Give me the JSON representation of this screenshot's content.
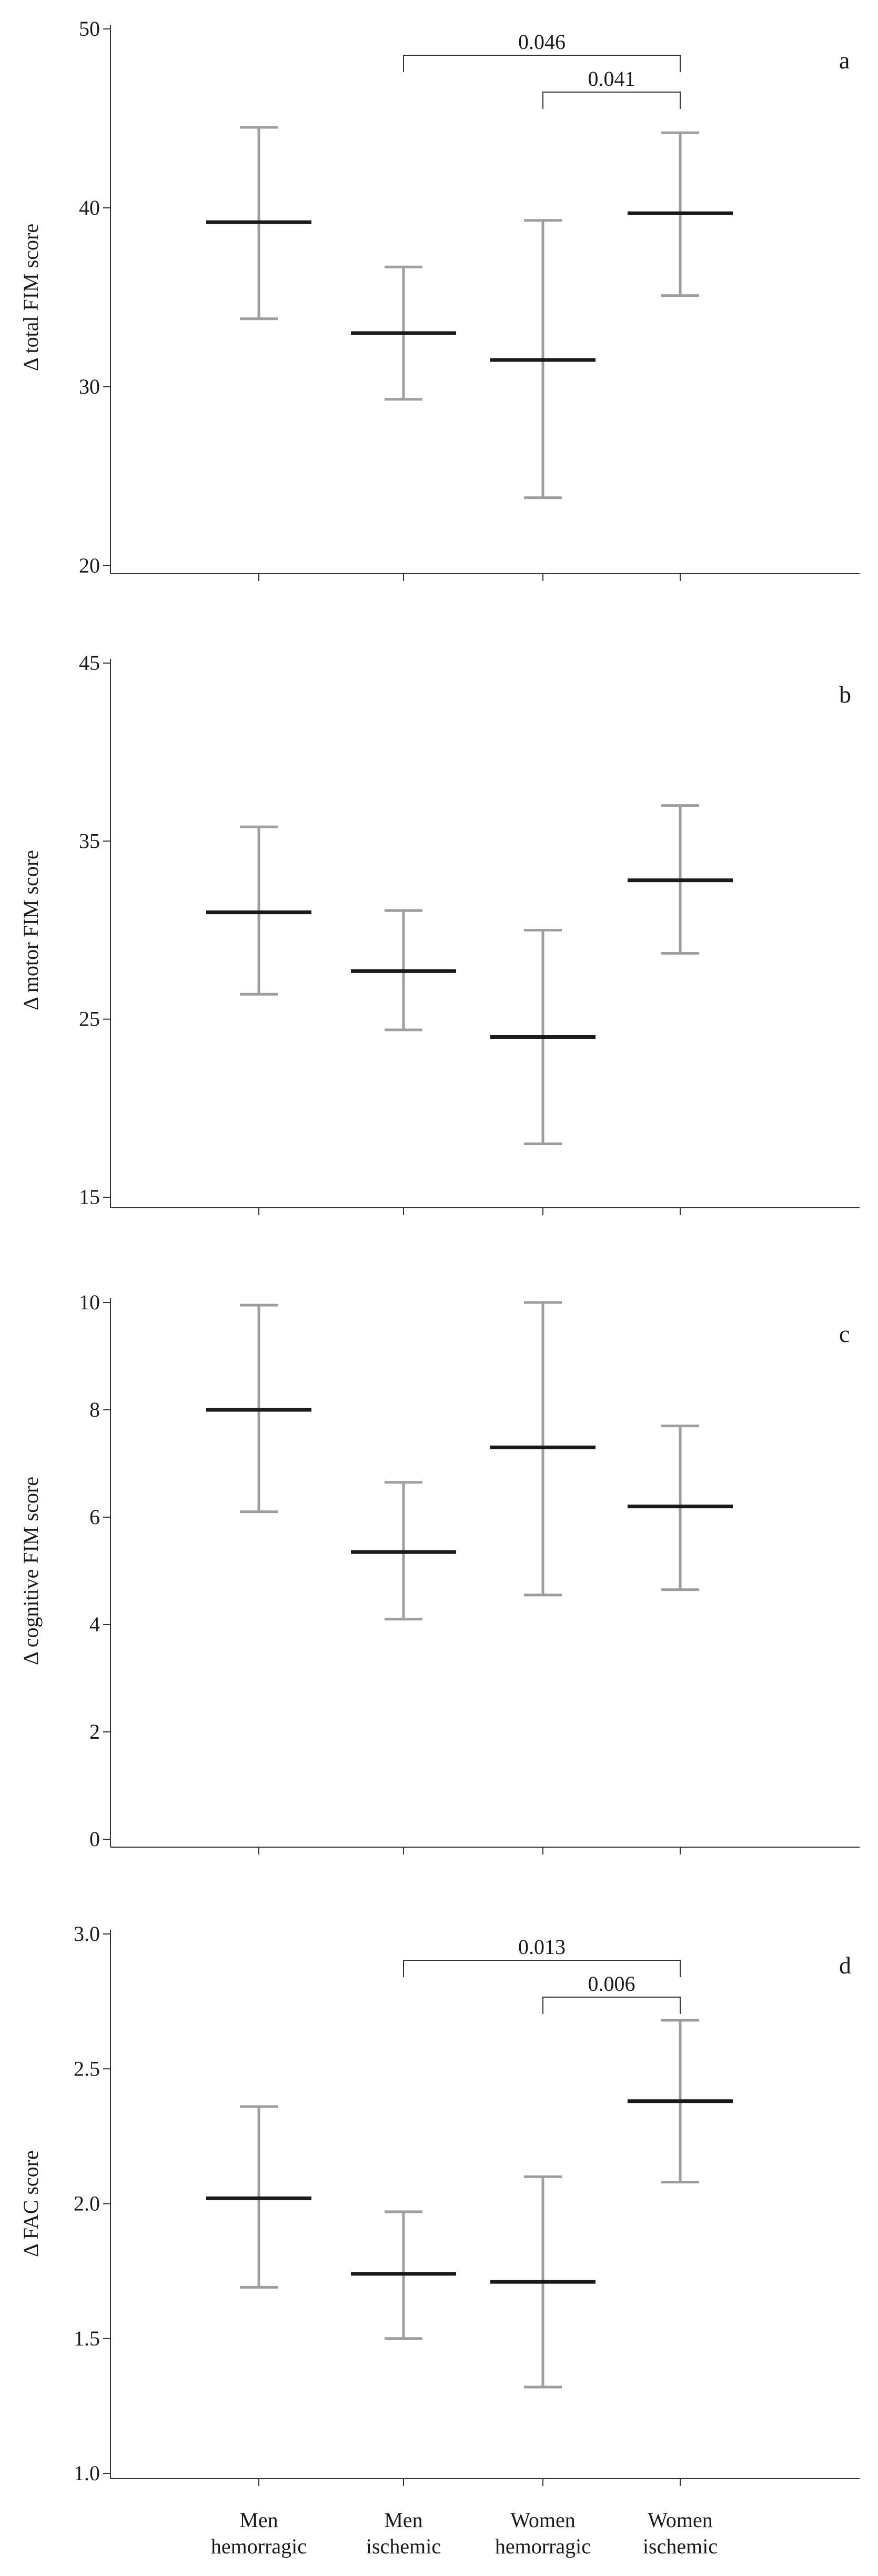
{
  "chart_data": [
    {
      "type": "errorbar",
      "panel_label": "a",
      "ylabel": "Δ total FIM score",
      "ylim": [
        20,
        50
      ],
      "yticks": [
        20,
        30,
        40,
        50
      ],
      "categories": [
        "Men hemorragic",
        "Men ischemic",
        "Women hemorragic",
        "Women ischemic"
      ],
      "means": [
        39.2,
        33.0,
        31.5,
        39.7
      ],
      "lower": [
        33.8,
        29.3,
        23.8,
        35.1
      ],
      "upper": [
        44.5,
        36.7,
        39.3,
        44.2
      ],
      "comparisons": [
        {
          "from": 1,
          "to": 3,
          "p": "0.046"
        },
        {
          "from": 2,
          "to": 3,
          "p": "0.041"
        }
      ],
      "grid": false
    },
    {
      "type": "errorbar",
      "panel_label": "b",
      "ylabel": "Δ motor FIM score",
      "ylim": [
        15,
        45
      ],
      "yticks": [
        15,
        25,
        35,
        45
      ],
      "categories": [
        "Men hemorragic",
        "Men ischemic",
        "Women hemorragic",
        "Women ischemic"
      ],
      "means": [
        31.0,
        27.7,
        24.0,
        32.8
      ],
      "lower": [
        26.4,
        24.4,
        18.0,
        28.7
      ],
      "upper": [
        35.8,
        31.1,
        30.0,
        37.0
      ],
      "comparisons": [],
      "grid": false
    },
    {
      "type": "errorbar",
      "panel_label": "c",
      "ylabel": "Δ cognitive FIM score",
      "ylim": [
        0,
        10
      ],
      "yticks": [
        0,
        2,
        4,
        6,
        8,
        10
      ],
      "categories": [
        "Men hemorragic",
        "Men ischemic",
        "Women hemorragic",
        "Women ischemic"
      ],
      "means": [
        8.0,
        5.35,
        7.3,
        6.2
      ],
      "lower": [
        6.1,
        4.1,
        4.55,
        4.65
      ],
      "upper": [
        9.95,
        6.65,
        10.0,
        7.7
      ],
      "comparisons": [],
      "grid": false
    },
    {
      "type": "errorbar",
      "panel_label": "d",
      "ylabel": "Δ FAC score",
      "ylim": [
        1.0,
        3.0
      ],
      "yticks": [
        1.0,
        1.5,
        2.0,
        2.5,
        3.0
      ],
      "categories": [
        "Men hemorragic",
        "Men ischemic",
        "Women hemorragic",
        "Women ischemic"
      ],
      "means": [
        2.02,
        1.74,
        1.71,
        2.38
      ],
      "lower": [
        1.69,
        1.5,
        1.32,
        2.08
      ],
      "upper": [
        2.36,
        1.97,
        2.1,
        2.68
      ],
      "comparisons": [
        {
          "from": 1,
          "to": 3,
          "p": "0.013"
        },
        {
          "from": 2,
          "to": 3,
          "p": "0.006"
        }
      ],
      "grid": false
    }
  ],
  "xaxis_labels": [
    {
      "line1": "Men",
      "line2": "hemorragic"
    },
    {
      "line1": "Men",
      "line2": "ischemic"
    },
    {
      "line1": "Women",
      "line2": "hemorragic"
    },
    {
      "line1": "Women",
      "line2": "ischemic"
    }
  ],
  "colors": {
    "mean_line": "#1a1a1a",
    "error_bar": "#9e9e9e",
    "axis": "#333333"
  }
}
